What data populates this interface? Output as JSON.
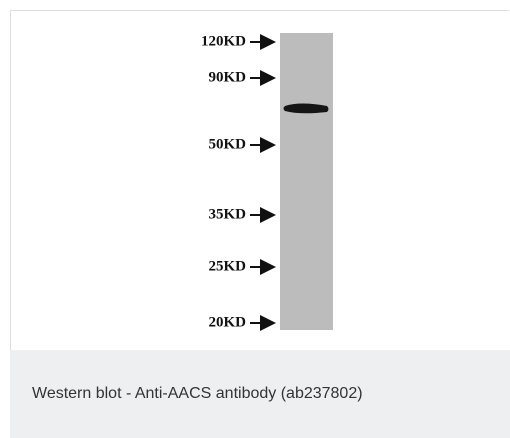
{
  "figure": {
    "markers": [
      "120KD",
      "90KD",
      "50KD",
      "35KD",
      "25KD",
      "20KD"
    ]
  },
  "caption": "Western blot - Anti-AACS antibody (ab237802)"
}
